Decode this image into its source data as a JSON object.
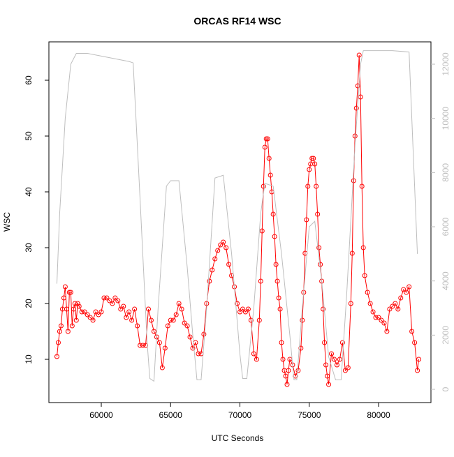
{
  "chart_data": {
    "type": "line",
    "title": "ORCAS RF14 WSC",
    "x_label": "UTC Seconds",
    "y_label": "WSC",
    "xlim": [
      56222,
      83778
    ],
    "xticks": [
      60000,
      65000,
      70000,
      75000,
      80000
    ],
    "ylim": [
      2.25,
      66.875
    ],
    "yticks": [
      10,
      20,
      30,
      40,
      50,
      60
    ],
    "y2lim": [
      -489,
      12824
    ],
    "y2ticks": [
      0,
      2000,
      4000,
      6000,
      8000,
      10000,
      12000
    ],
    "series": [
      {
        "color": "#ff0000",
        "markers": true,
        "x": [
          56800,
          56900,
          57000,
          57100,
          57200,
          57300,
          57400,
          57500,
          57600,
          57700,
          57800,
          57900,
          58000,
          58100,
          58200,
          58300,
          58400,
          58600,
          58800,
          59000,
          59200,
          59400,
          59600,
          59800,
          60000,
          60200,
          60400,
          60600,
          60800,
          61000,
          61200,
          61400,
          61600,
          61800,
          62000,
          62200,
          62400,
          62600,
          62800,
          63000,
          63200,
          63400,
          63600,
          63800,
          64000,
          64200,
          64400,
          64600,
          64800,
          65000,
          65200,
          65400,
          65600,
          65800,
          66000,
          66200,
          66400,
          66600,
          66800,
          67000,
          67200,
          67400,
          67600,
          67800,
          68000,
          68200,
          68400,
          68600,
          68800,
          69000,
          69200,
          69400,
          69600,
          69800,
          70000,
          70200,
          70400,
          70600,
          70800,
          71000,
          71200,
          71400,
          71500,
          71600,
          71700,
          71800,
          71900,
          72000,
          72100,
          72200,
          72300,
          72400,
          72500,
          72600,
          72700,
          72800,
          72900,
          73000,
          73100,
          73200,
          73300,
          73400,
          73500,
          73600,
          73800,
          74000,
          74200,
          74400,
          74500,
          74600,
          74700,
          74800,
          74900,
          75000,
          75100,
          75200,
          75300,
          75400,
          75500,
          75600,
          75700,
          75800,
          75900,
          76000,
          76100,
          76200,
          76300,
          76400,
          76600,
          76800,
          77000,
          77200,
          77400,
          77600,
          77800,
          78000,
          78100,
          78200,
          78300,
          78400,
          78500,
          78600,
          78700,
          78800,
          78900,
          79000,
          79200,
          79400,
          79600,
          79800,
          80000,
          80200,
          80400,
          80600,
          80800,
          81000,
          81200,
          81400,
          81600,
          81800,
          82000,
          82200,
          82400,
          82600,
          82800,
          82900
        ],
        "values": [
          10.5,
          13,
          15,
          16,
          19,
          21,
          23,
          19,
          15,
          22,
          22,
          16,
          19,
          20,
          17,
          20,
          19.5,
          18.5,
          18.5,
          18,
          17.5,
          17,
          18.5,
          18,
          18.5,
          21,
          21,
          20.5,
          20,
          21,
          20.5,
          19,
          19.5,
          17.5,
          18.5,
          17,
          19,
          16,
          12.5,
          12.5,
          12.5,
          19,
          17,
          15,
          14,
          13,
          8.5,
          12,
          16,
          17,
          17,
          18,
          20,
          19,
          16.5,
          16,
          14,
          12,
          13,
          11,
          11,
          14.5,
          20,
          24,
          26,
          28,
          29.5,
          30.5,
          31,
          30,
          27,
          25,
          23,
          20,
          18.5,
          19,
          18.5,
          19,
          17,
          11,
          10,
          17,
          24,
          33,
          41,
          48,
          49.5,
          49.5,
          46,
          43,
          40,
          36,
          32,
          27,
          24,
          21,
          19,
          13,
          10,
          8,
          7,
          5.5,
          8,
          10,
          9,
          7,
          8,
          12,
          17,
          22,
          29,
          35,
          41,
          44,
          45,
          46,
          46,
          45,
          41,
          36,
          30,
          27,
          24,
          19,
          13,
          9,
          7,
          5.5,
          11,
          10,
          9,
          10,
          13,
          8,
          8.5,
          20,
          29,
          42,
          50,
          55,
          59,
          64.5,
          57,
          41,
          30,
          25,
          22,
          20,
          18.5,
          17.5,
          17.5,
          17,
          16.5,
          15,
          19,
          19.5,
          20,
          19,
          21,
          22.5,
          22,
          23,
          15,
          13,
          8,
          10
        ]
      },
      {
        "color": "#bebebe",
        "axis": "y2",
        "markers": false,
        "x": [
          56800,
          57000,
          57400,
          57800,
          58200,
          59000,
          60000,
          61000,
          62000,
          62300,
          62800,
          63300,
          63500,
          63800,
          64100,
          64700,
          65000,
          65600,
          66200,
          66600,
          66900,
          67200,
          67600,
          68200,
          68800,
          69400,
          70000,
          70200,
          70500,
          71000,
          71500,
          71800,
          72400,
          73000,
          73600,
          73900,
          74100,
          74500,
          75000,
          75400,
          75900,
          76400,
          76900,
          77300,
          77700,
          78300,
          78700,
          78900,
          80000,
          81000,
          82200,
          82800
        ],
        "values": [
          3900,
          6500,
          10000,
          12000,
          12400,
          12400,
          12300,
          12200,
          12100,
          12050,
          7000,
          1800,
          400,
          300,
          3000,
          7500,
          7700,
          7700,
          4500,
          2000,
          350,
          350,
          3000,
          7800,
          7900,
          5000,
          1300,
          400,
          400,
          3000,
          6500,
          7600,
          7500,
          5000,
          2000,
          350,
          350,
          3000,
          6000,
          6200,
          4000,
          1200,
          350,
          350,
          3500,
          9000,
          12000,
          12500,
          12500,
          12500,
          12450,
          5000
        ]
      }
    ]
  }
}
